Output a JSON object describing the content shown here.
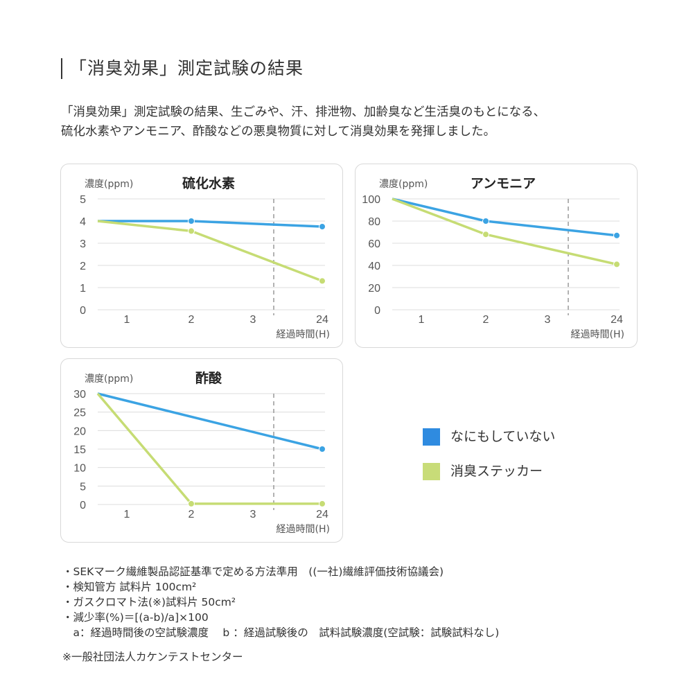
{
  "heading": "「消臭効果」測定試験の結果",
  "intro": [
    "「消臭効果」測定試験の結果、生ごみや、汗、排泄物、加齢臭など生活臭のもとになる、",
    "硫化水素やアンモニア、酢酸などの悪臭物質に対して消臭効果を発揮しました。"
  ],
  "legend": [
    {
      "name": "なにもしていない",
      "color": "#2f8be0"
    },
    {
      "name": "消臭ステッカー",
      "color": "#c8dc78"
    }
  ],
  "line_colors": {
    "blue": "#3ba3e3",
    "green": "#c6dc74"
  },
  "chart_data": [
    {
      "type": "line",
      "title": "硫化水素",
      "ylabel": "濃度(ppm)",
      "xlabel": "経過時間(H)",
      "x_ticks": [
        "1",
        "2",
        "3",
        "24"
      ],
      "y_ticks": [
        "0",
        "1",
        "2",
        "3",
        "4",
        "5"
      ],
      "ylim": [
        0,
        5
      ],
      "grid": true,
      "axis_break_between": [
        "3",
        "24"
      ],
      "series": [
        {
          "name": "なにもしていない",
          "points": [
            {
              "x": "0",
              "y": 4
            },
            {
              "x": "2",
              "y": 4
            },
            {
              "x": "24",
              "y": 3.75
            }
          ]
        },
        {
          "name": "消臭ステッカー",
          "points": [
            {
              "x": "0",
              "y": 4
            },
            {
              "x": "2",
              "y": 3.55
            },
            {
              "x": "24",
              "y": 1.3
            }
          ]
        }
      ]
    },
    {
      "type": "line",
      "title": "アンモニア",
      "ylabel": "濃度(ppm)",
      "xlabel": "経過時間(H)",
      "x_ticks": [
        "1",
        "2",
        "3",
        "24"
      ],
      "y_ticks": [
        "0",
        "20",
        "40",
        "60",
        "80",
        "100"
      ],
      "ylim": [
        0,
        100
      ],
      "grid": true,
      "axis_break_between": [
        "3",
        "24"
      ],
      "series": [
        {
          "name": "なにもしていない",
          "points": [
            {
              "x": "0",
              "y": 100
            },
            {
              "x": "2",
              "y": 80
            },
            {
              "x": "24",
              "y": 67
            }
          ]
        },
        {
          "name": "消臭ステッカー",
          "points": [
            {
              "x": "0",
              "y": 100
            },
            {
              "x": "2",
              "y": 68
            },
            {
              "x": "24",
              "y": 41
            }
          ]
        }
      ]
    },
    {
      "type": "line",
      "title": "酢酸",
      "ylabel": "濃度(ppm)",
      "xlabel": "経過時間(H)",
      "x_ticks": [
        "1",
        "2",
        "3",
        "24"
      ],
      "y_ticks": [
        "0",
        "5",
        "10",
        "15",
        "20",
        "25",
        "30"
      ],
      "ylim": [
        0,
        30
      ],
      "grid": true,
      "axis_break_between": [
        "3",
        "24"
      ],
      "series": [
        {
          "name": "なにもしていない",
          "points": [
            {
              "x": "0",
              "y": 30
            },
            {
              "x": "24",
              "y": 15
            }
          ]
        },
        {
          "name": "消臭ステッカー",
          "points": [
            {
              "x": "0",
              "y": 30
            },
            {
              "x": "2",
              "y": 0.2
            },
            {
              "x": "24",
              "y": 0.2
            }
          ]
        }
      ]
    }
  ],
  "notes": [
    "・SEKマーク繊維製品認証基準で定める方法準用　((一社)繊維評価技術協議会)",
    "・検知管方 試料片 100cm²",
    "・ガスクロマト法(※)試料片 50cm²",
    "・減少率(%)＝[(a-b)/a]×100",
    "　a：経過時間後の空試験濃度　 b ：経過試験後の　試料試験濃度(空試験：試験試料なし)"
  ],
  "source": "※一般社団法人カケンテストセンター"
}
